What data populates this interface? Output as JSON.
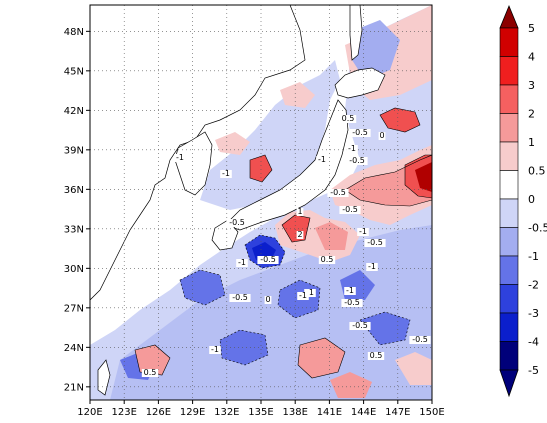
{
  "map": {
    "x_axis": {
      "ticks": [
        "120E",
        "123E",
        "126E",
        "129E",
        "132E",
        "135E",
        "138E",
        "141E",
        "144E",
        "147E",
        "150E"
      ]
    },
    "y_axis": {
      "ticks": [
        "21N",
        "24N",
        "27N",
        "30N",
        "33N",
        "36N",
        "39N",
        "42N",
        "45N",
        "48N"
      ]
    },
    "gridlines": true,
    "contour_labels": [
      "-0.5",
      "-0.5",
      "-1",
      "-1",
      "0",
      "-0.5",
      "0.5",
      "-0.5",
      "1",
      "2",
      "-0.5",
      "-1",
      "-0.5",
      "-1",
      "-0.5",
      "-1",
      "0.5",
      "-0.5",
      "0",
      "-1",
      "-0.5",
      "-1",
      "-0.5",
      "-1",
      "0.5",
      "-0.5",
      "-1",
      "-1",
      "-1",
      "0.5"
    ]
  },
  "colorbar": {
    "labels": [
      "5",
      "4",
      "3",
      "2",
      "1",
      "0.5",
      "0",
      "-0.5",
      "-1",
      "-2",
      "-3",
      "-4",
      "-5"
    ],
    "colors": [
      "#8b0000",
      "#d10000",
      "#f01f1f",
      "#f56060",
      "#f59a9a",
      "#f7cccc",
      "#ffffff",
      "#cfd5f7",
      "#a3adf0",
      "#6473e8",
      "#2e41dd",
      "#0b1fcc",
      "#00007a"
    ]
  }
}
